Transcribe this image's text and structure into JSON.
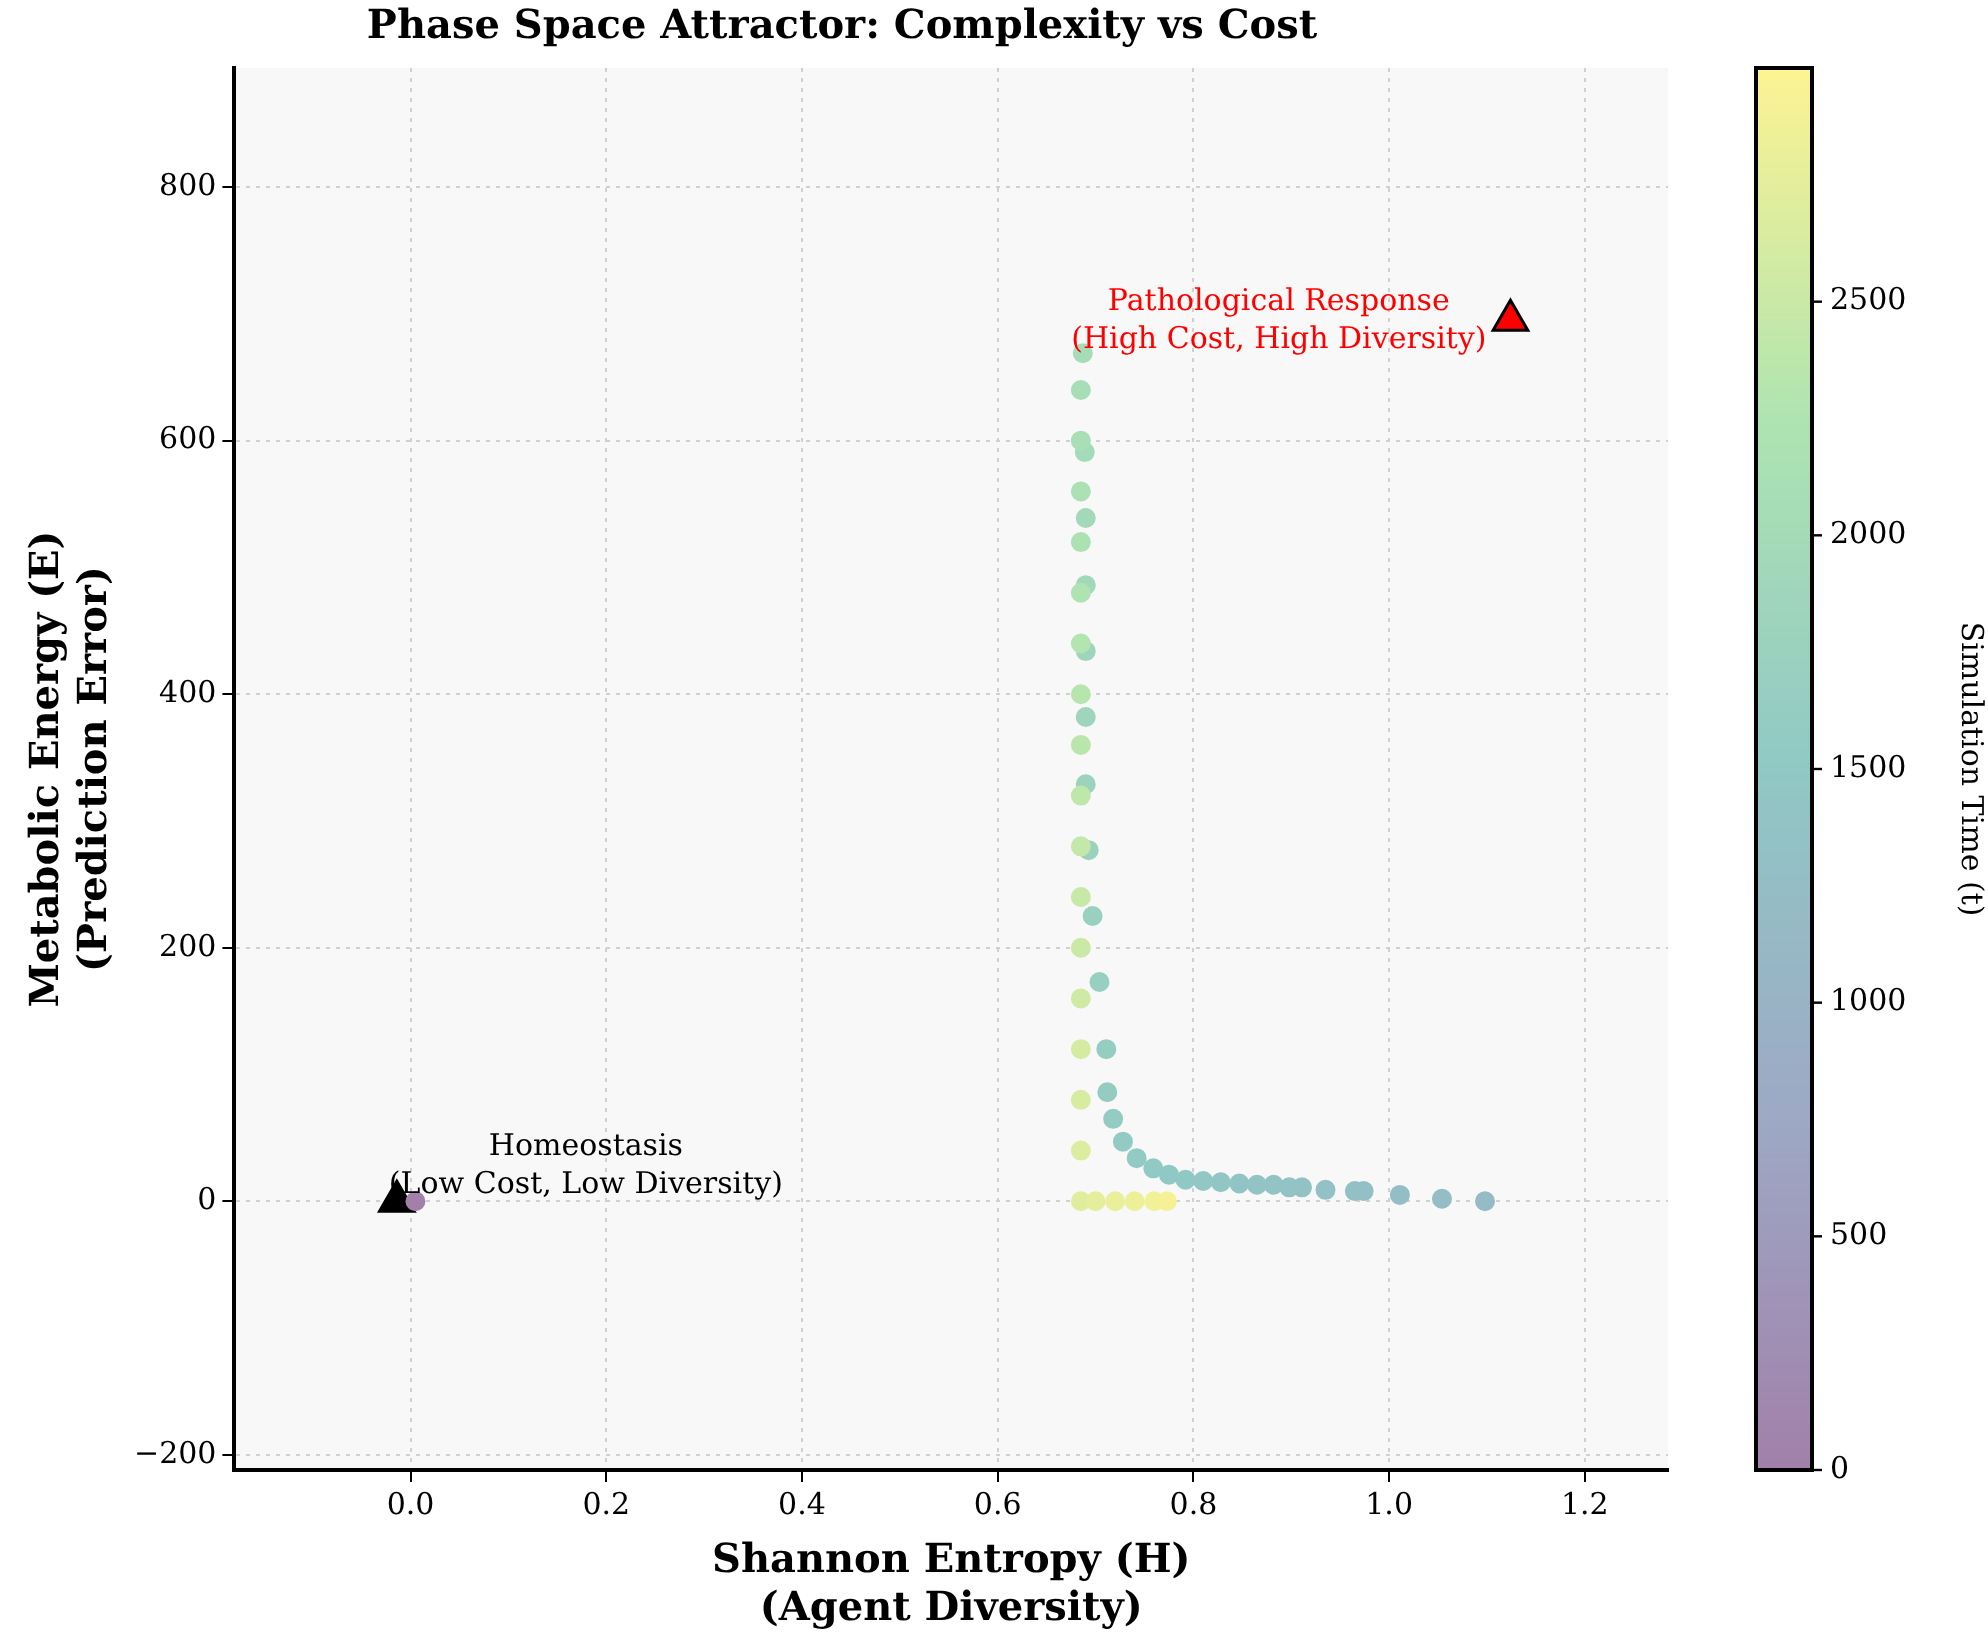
{
  "chart_data": {
    "type": "scatter",
    "title": "Phase Space Attractor: Complexity vs Cost",
    "xlabel": "Shannon Entropy (H)\n(Agent Diversity)",
    "ylabel": "Metabolic Energy (E)\n(Prediction Error)",
    "clabel": "Simulation Time (t)",
    "xlim": [
      -0.18,
      1.285
    ],
    "ylim": [
      -212,
      894
    ],
    "xticks": [
      {
        "value": 0,
        "label": "0.0"
      },
      {
        "value": 0.2,
        "label": "0.2"
      },
      {
        "value": 0.4,
        "label": "0.4"
      },
      {
        "value": 0.6,
        "label": "0.6"
      },
      {
        "value": 0.8,
        "label": "0.8"
      },
      {
        "value": 1,
        "label": "1.0"
      },
      {
        "value": 1.2,
        "label": "1.2"
      }
    ],
    "yticks": [
      {
        "value": -200,
        "label": "−200"
      },
      0,
      200,
      400,
      600,
      800
    ],
    "clim": [
      0,
      3000
    ],
    "cticks": [
      0,
      500,
      1000,
      1500,
      2000,
      2500
    ],
    "grid": true,
    "legend": false,
    "series": [
      {
        "marker": "circle",
        "x": [
          0.005,
          1.098,
          1.054,
          1.011,
          0.974,
          0.965,
          0.935,
          0.911,
          0.898,
          0.882,
          0.865,
          0.847,
          0.828,
          0.81,
          0.792,
          0.775,
          0.759,
          0.742,
          0.728,
          0.718,
          0.712,
          0.711,
          0.704,
          0.697,
          0.693,
          0.69,
          0.69,
          0.69,
          0.69,
          0.69,
          0.689,
          0.687,
          0.685,
          0.685,
          0.685,
          0.685,
          0.685,
          0.685,
          0.685,
          0.685,
          0.685,
          0.685,
          0.685,
          0.685,
          0.685,
          0.685,
          0.685,
          0.685,
          0.685,
          0.7,
          0.72,
          0.74,
          0.76,
          0.773
        ],
        "values": [
          0,
          0,
          2,
          5,
          8,
          8,
          9,
          11,
          11,
          13,
          13,
          14,
          15,
          16,
          17,
          21,
          26,
          34,
          47,
          65,
          86,
          120,
          173,
          225,
          277,
          329,
          382,
          434,
          486,
          539,
          591,
          669,
          640,
          600,
          560,
          520,
          480,
          440,
          400,
          360,
          320,
          280,
          240,
          200,
          160,
          120,
          80,
          40,
          0,
          0,
          0,
          0,
          0,
          0
        ],
        "colors": [
          "#a280aa",
          "#95bbc5",
          "#95bdc5",
          "#94bec5",
          "#94bfc5",
          "#93c0c5",
          "#93c1c5",
          "#93c2c5",
          "#92c3c5",
          "#92c3c5",
          "#92c4c5",
          "#91c5c5",
          "#91c6c5",
          "#91c7c5",
          "#90c8c5",
          "#90c8c5",
          "#91c9c5",
          "#92cac4",
          "#93cbc4",
          "#94cbc3",
          "#94ccc2",
          "#96cdc2",
          "#97cfc0",
          "#99d0bf",
          "#9bd2be",
          "#9cd3bd",
          "#9ed5bc",
          "#9fd6bb",
          "#a1d8ba",
          "#a3d9b9",
          "#a4dbb8",
          "#a6dcb6",
          "#a8deb5",
          "#a9dfb4",
          "#abe1b3",
          "#ace2b2",
          "#aee4b1",
          "#b2e5af",
          "#b6e5ae",
          "#bae6ac",
          "#bee7aa",
          "#c3e8a9",
          "#c7e9a7",
          "#cbe9a6",
          "#cfeaa4",
          "#d4eba2",
          "#d8eca1",
          "#dced9f",
          "#e0ed9d",
          "#e5ee9c",
          "#e9ef9a",
          "#edf099",
          "#f1f197",
          "#f6f195"
        ],
        "cvalues": [
          0,
          1200,
          1230,
          1260,
          1290,
          1310,
          1330,
          1350,
          1370,
          1390,
          1410,
          1430,
          1450,
          1470,
          1490,
          1510,
          1530,
          1550,
          1570,
          1590,
          1610,
          1640,
          1680,
          1720,
          1760,
          1800,
          1840,
          1880,
          1920,
          1960,
          2000,
          2040,
          2080,
          2120,
          2160,
          2200,
          2240,
          2280,
          2320,
          2360,
          2400,
          2440,
          2480,
          2520,
          2560,
          2600,
          2640,
          2680,
          2720,
          2760,
          2800,
          2840,
          2880,
          2920
        ]
      },
      {
        "name": "Homeostasis\n(Low Cost, Low Diversity)",
        "color": "#000000",
        "marker": "triangle",
        "x": [
          -0.014
        ],
        "values": [
          0
        ]
      },
      {
        "name": "Pathological Response\n(High Cost, High Diversity)",
        "color": "#ff0000",
        "marker": "triangle",
        "x": [
          1.124
        ],
        "values": [
          695
        ]
      }
    ]
  }
}
